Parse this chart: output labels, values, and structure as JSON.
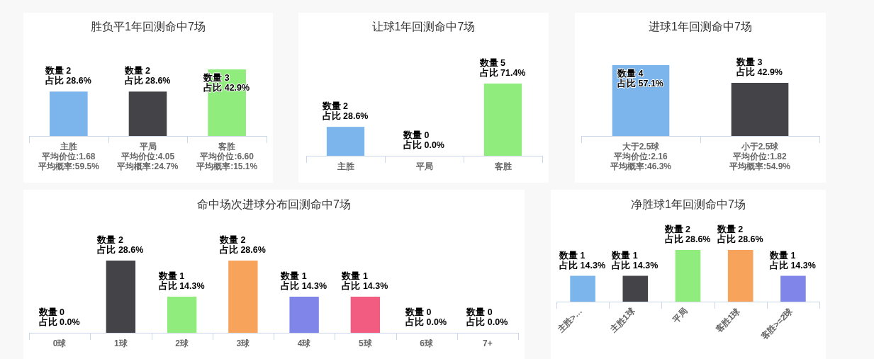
{
  "chart_data": [
    {
      "type": "bar",
      "title": "胜负平1年回测命中7场",
      "categories": [
        "主胜",
        "平局",
        "客胜"
      ],
      "annotations": [
        "平均价位:1.68\n平均概率:59.5%",
        "平均价位:4.05\n平均概率:24.7%",
        "平均价位:6.60\n平均概率:15.1%"
      ],
      "values": [
        2,
        2,
        3
      ],
      "colors": [
        "#7cb5ec",
        "#434348",
        "#90ed7d"
      ],
      "value_labels": [
        "数量 2\n占比 28.6%",
        "数量 2\n占比 28.6%",
        "数量 3\n占比 42.9%"
      ],
      "tick_labels": "x"
    },
    {
      "type": "bar",
      "title": "让球1年回测命中7场",
      "categories": [
        "主胜",
        "平局",
        "客胜"
      ],
      "values": [
        2,
        0,
        5
      ],
      "colors": [
        "#7cb5ec",
        null,
        "#90ed7d"
      ],
      "value_labels": [
        "数量 2\n占比 28.6%",
        "数量 0\n占比 0.0%",
        "数量 5\n占比 71.4%"
      ],
      "tick_labels": "x"
    },
    {
      "type": "bar",
      "title": "进球1年回测命中7场",
      "categories": [
        "大于2.5球",
        "小于2.5球"
      ],
      "annotations": [
        "平均价位:2.16\n平均概率:46.3%",
        "平均价位:1.82\n平均概率:54.9%"
      ],
      "values": [
        4,
        3
      ],
      "colors": [
        "#7cb5ec",
        "#434348"
      ],
      "value_labels": [
        "数量 4\n占比 57.1%",
        "数量 3\n占比 42.9%"
      ],
      "tick_labels": "x"
    },
    {
      "type": "bar",
      "title": "命中场次进球分布回测命中7场",
      "categories": [
        "0球",
        "1球",
        "2球",
        "3球",
        "4球",
        "5球",
        "6球",
        "7+"
      ],
      "values": [
        0,
        2,
        1,
        2,
        1,
        1,
        0,
        0
      ],
      "colors": [
        null,
        "#434348",
        "#90ed7d",
        "#f7a35c",
        "#8085e9",
        "#f15c80",
        null,
        null
      ],
      "value_labels": [
        "数量 0\n占比 0.0%",
        "数量 2\n占比 28.6%",
        "数量 1\n占比 14.3%",
        "数量 2\n占比 28.6%",
        "数量 1\n占比 14.3%",
        "数量 1\n占比 14.3%",
        "数量 0\n占比 0.0%",
        "数量 0\n占比 0.0%"
      ],
      "tick_labels": "x"
    },
    {
      "type": "bar",
      "title": "净胜球1年回测命中7场",
      "categories": [
        "主胜>…",
        "主胜1球",
        "平局",
        "客胜1球",
        "客胜>=2球"
      ],
      "values": [
        1,
        1,
        2,
        2,
        1
      ],
      "colors": [
        "#7cb5ec",
        "#434348",
        "#90ed7d",
        "#f7a35c",
        "#8085e9"
      ],
      "value_labels": [
        "数量 1\n占比 14.3%",
        "数量 1\n占比 14.3%",
        "数量 2\n占比 28.6%",
        "数量 2\n占比 28.6%",
        "数量 1\n占比 14.3%"
      ],
      "tick_labels": "x"
    }
  ]
}
